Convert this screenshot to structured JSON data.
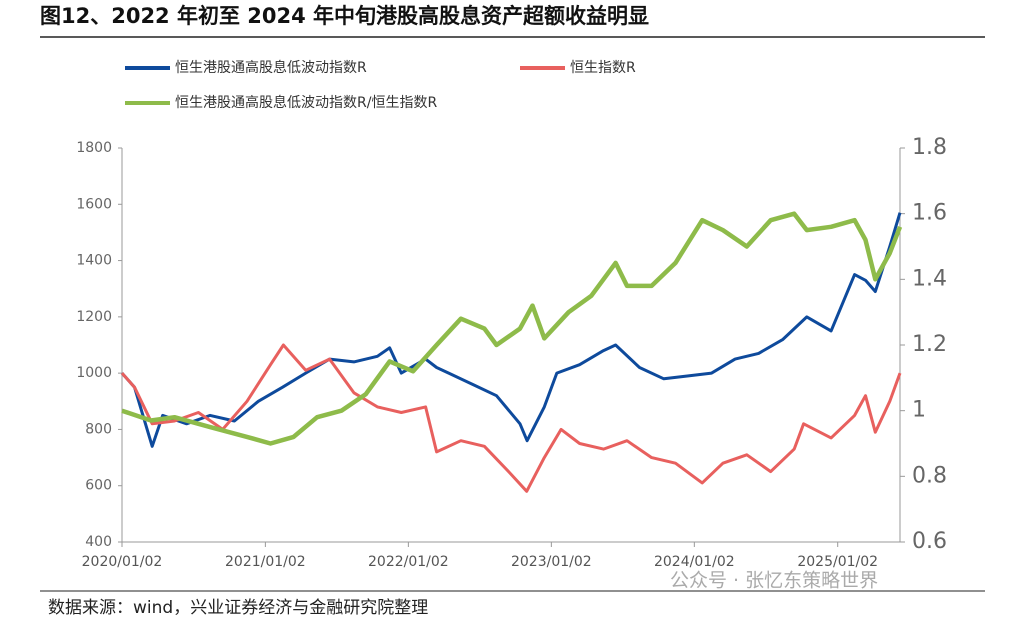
{
  "title": "图12、2022 年初至 2024 年中旬港股高股息资产超额收益明显",
  "source": "数据来源：wind，兴业证券经济与金融研究院整理",
  "watermark": "公众号 · 张忆东策略世界",
  "chart_data": {
    "type": "line",
    "xlim": [
      "2020/01/02",
      "2025/06/10"
    ],
    "xticks": [
      "2020/01/02",
      "2021/01/02",
      "2022/01/02",
      "2023/01/02",
      "2024/01/02",
      "2025/01/02"
    ],
    "ylim": [
      400,
      1800
    ],
    "yticks": [
      400,
      600,
      800,
      1000,
      1200,
      1400,
      1600,
      1800
    ],
    "y2lim": [
      0.6,
      1.8
    ],
    "y2ticks": [
      0.6,
      0.8,
      1,
      1.2,
      1.4,
      1.6,
      1.8
    ],
    "series": [
      {
        "name": "恒生港股通高股息低波动指数R",
        "color": "#0e4a9c",
        "x": [
          "2020/01/02",
          "2020/02/03",
          "2020/03/19",
          "2020/04/15",
          "2020/06/15",
          "2020/08/14",
          "2020/10/15",
          "2020/12/15",
          "2021/02/15",
          "2021/04/15",
          "2021/06/15",
          "2021/08/16",
          "2021/10/15",
          "2021/11/15",
          "2021/12/15",
          "2022/02/15",
          "2022/03/15",
          "2022/04/15",
          "2022/06/15",
          "2022/08/15",
          "2022/10/14",
          "2022/11/01",
          "2022/12/15",
          "2023/01/16",
          "2023/03/15",
          "2023/05/15",
          "2023/06/15",
          "2023/08/15",
          "2023/10/16",
          "2023/12/15",
          "2024/02/15",
          "2024/04/15",
          "2024/06/14",
          "2024/08/15",
          "2024/10/15",
          "2024/12/16",
          "2025/02/14",
          "2025/03/14",
          "2025/04/08",
          "2025/05/15",
          "2025/06/10"
        ],
        "values": [
          1000,
          950,
          740,
          850,
          820,
          850,
          830,
          900,
          950,
          1000,
          1050,
          1040,
          1060,
          1090,
          1000,
          1050,
          1020,
          1000,
          960,
          920,
          820,
          760,
          880,
          1000,
          1030,
          1080,
          1100,
          1020,
          980,
          990,
          1000,
          1050,
          1070,
          1120,
          1200,
          1150,
          1350,
          1330,
          1290,
          1450,
          1570
        ]
      },
      {
        "name": "恒生指数R",
        "color": "#e8605e",
        "x": [
          "2020/01/02",
          "2020/02/03",
          "2020/03/19",
          "2020/05/15",
          "2020/07/15",
          "2020/09/15",
          "2020/11/16",
          "2021/01/15",
          "2021/02/17",
          "2021/04/15",
          "2021/06/15",
          "2021/08/16",
          "2021/10/15",
          "2021/12/15",
          "2022/02/15",
          "2022/03/15",
          "2022/05/16",
          "2022/07/15",
          "2022/09/15",
          "2022/10/31",
          "2022/12/15",
          "2023/01/27",
          "2023/03/15",
          "2023/05/15",
          "2023/07/14",
          "2023/09/15",
          "2023/11/15",
          "2024/01/22",
          "2024/03/15",
          "2024/05/15",
          "2024/07/15",
          "2024/09/13",
          "2024/10/07",
          "2024/12/16",
          "2025/02/14",
          "2025/03/14",
          "2025/04/08",
          "2025/05/15",
          "2025/06/10"
        ],
        "values": [
          1000,
          950,
          820,
          830,
          860,
          800,
          900,
          1030,
          1100,
          1010,
          1050,
          930,
          880,
          860,
          880,
          720,
          760,
          740,
          650,
          580,
          700,
          800,
          750,
          730,
          760,
          700,
          680,
          610,
          680,
          710,
          650,
          730,
          820,
          770,
          850,
          920,
          790,
          900,
          1000
        ]
      },
      {
        "name": "恒生港股通高股息低波动指数R/恒生指数R",
        "color": "#8ebb4a",
        "axis": "y2",
        "x": [
          "2020/01/02",
          "2020/03/16",
          "2020/05/15",
          "2020/08/14",
          "2020/11/16",
          "2021/01/15",
          "2021/03/15",
          "2021/05/14",
          "2021/07/15",
          "2021/09/15",
          "2021/11/15",
          "2022/01/14",
          "2022/03/15",
          "2022/05/16",
          "2022/07/15",
          "2022/08/15",
          "2022/10/14",
          "2022/11/15",
          "2022/12/15",
          "2023/02/15",
          "2023/04/14",
          "2023/06/15",
          "2023/07/14",
          "2023/09/15",
          "2023/11/15",
          "2024/01/22",
          "2024/03/15",
          "2024/05/15",
          "2024/07/15",
          "2024/09/13",
          "2024/10/15",
          "2024/12/16",
          "2025/02/14",
          "2025/03/14",
          "2025/04/08",
          "2025/05/15",
          "2025/06/10"
        ],
        "values": [
          1.0,
          0.97,
          0.98,
          0.95,
          0.92,
          0.9,
          0.92,
          0.98,
          1.0,
          1.05,
          1.15,
          1.12,
          1.2,
          1.28,
          1.25,
          1.2,
          1.25,
          1.32,
          1.22,
          1.3,
          1.35,
          1.45,
          1.38,
          1.38,
          1.45,
          1.58,
          1.55,
          1.5,
          1.58,
          1.6,
          1.55,
          1.56,
          1.58,
          1.52,
          1.4,
          1.48,
          1.56
        ]
      }
    ]
  }
}
